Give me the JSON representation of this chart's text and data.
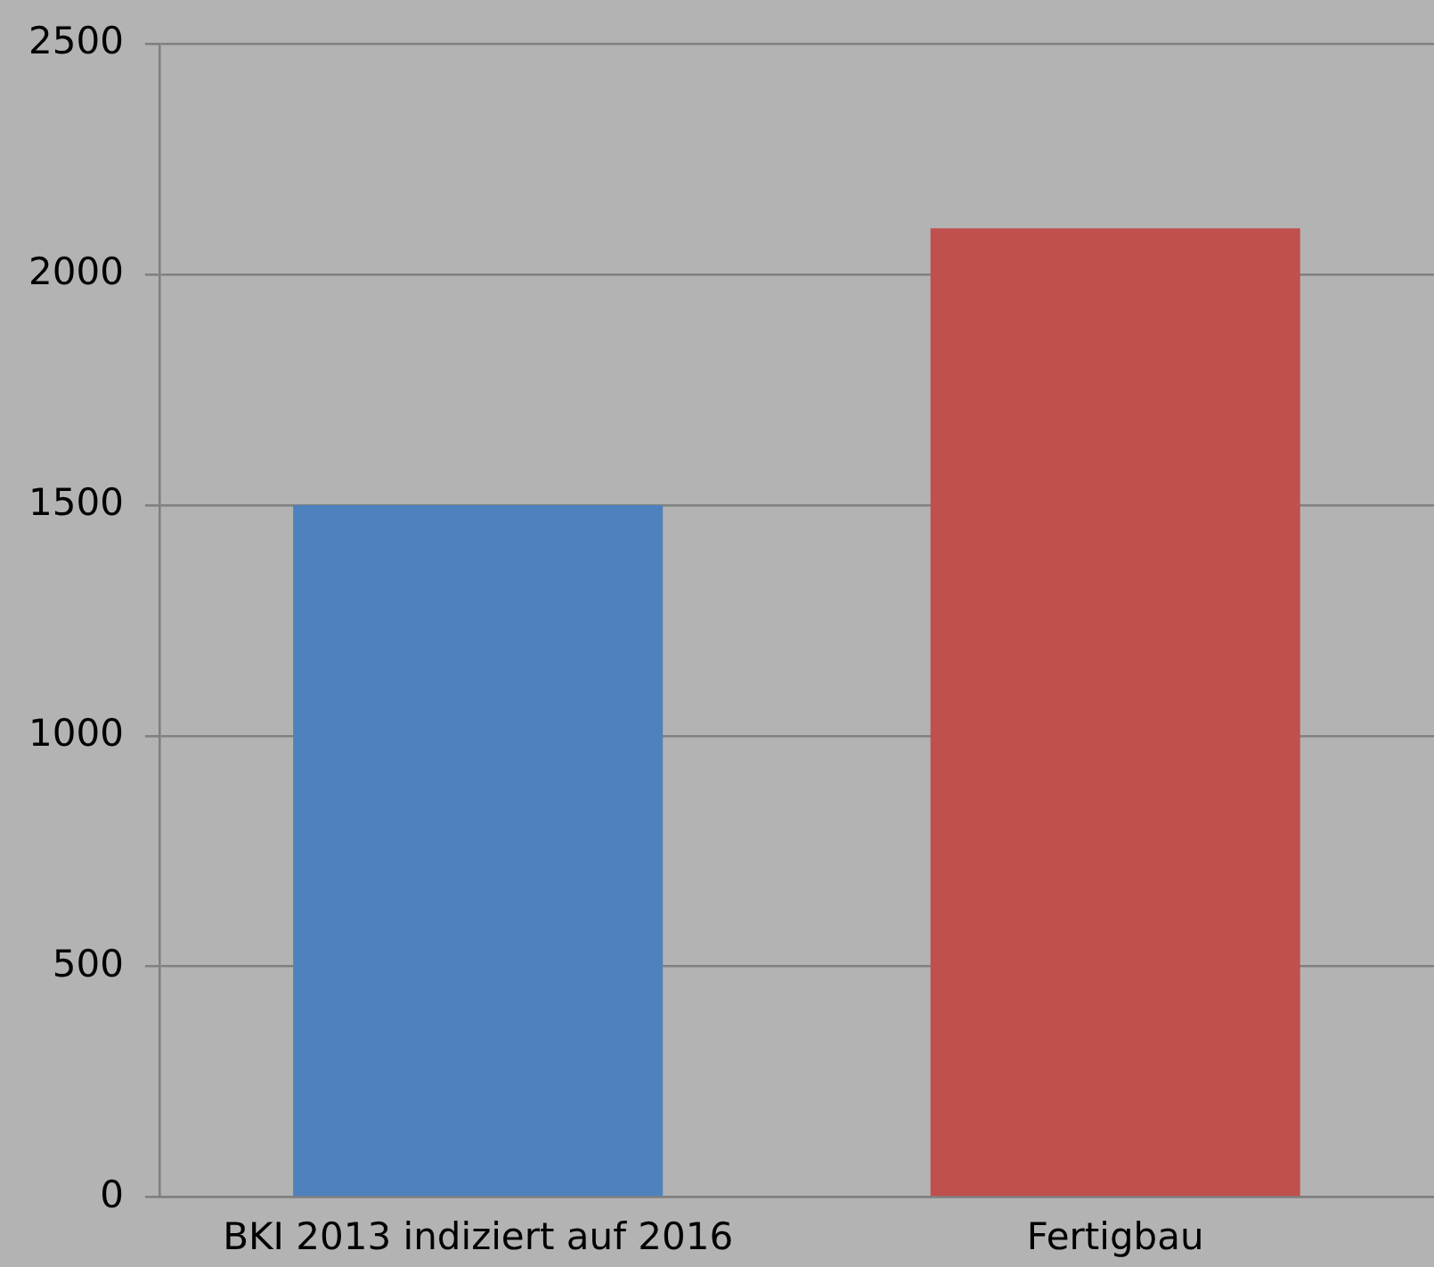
{
  "chart_data": {
    "type": "bar",
    "categories": [
      "BKI 2013 indiziert auf 2016",
      "Fertigbau"
    ],
    "values": [
      1500,
      2100
    ],
    "colors": [
      "#4f81bd",
      "#c0504d"
    ],
    "ylim": [
      0,
      2500
    ],
    "yticks": [
      0,
      500,
      1000,
      1500,
      2000,
      2500
    ],
    "grid": "y",
    "legend": false
  }
}
